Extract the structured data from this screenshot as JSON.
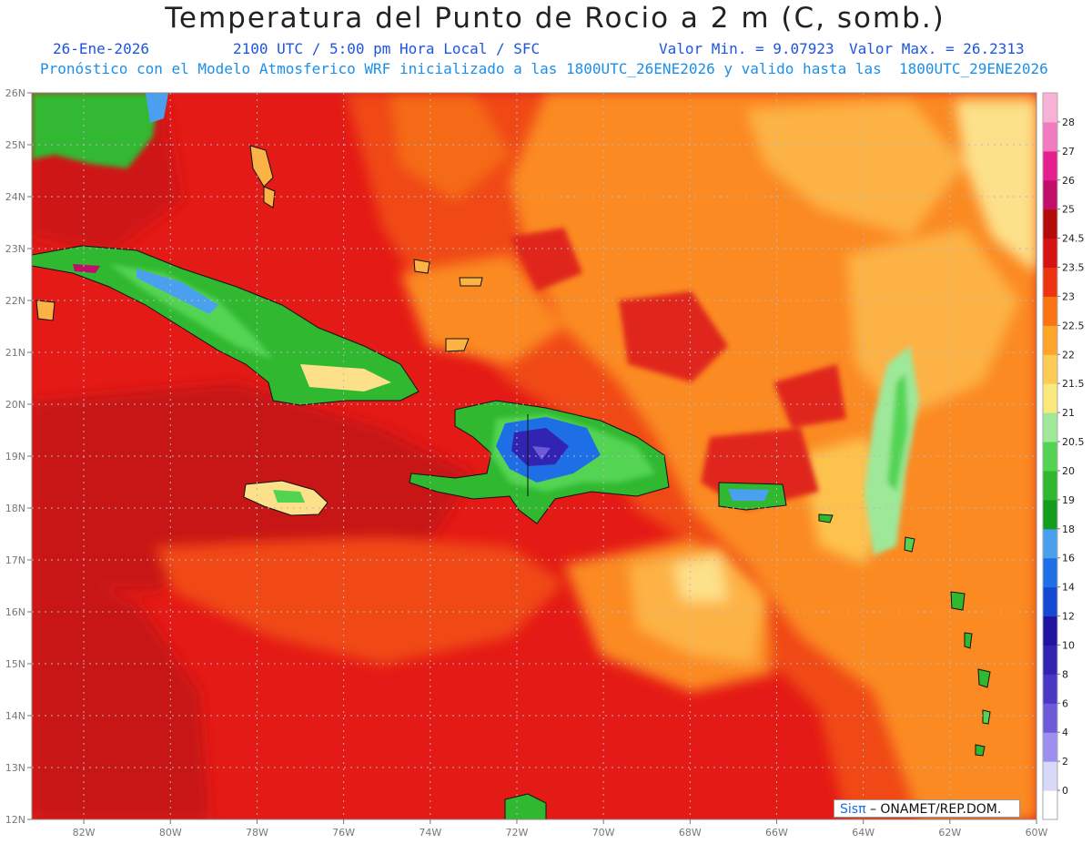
{
  "header": {
    "title": "Temperatura del Punto de Rocio a 2 m (C, somb.)",
    "date": "26-Ene-2026",
    "time": "2100 UTC / 5:00 pm Hora Local / SFC",
    "valor_min": "Valor Min. = 9.07923",
    "valor_max": "Valor Max. = 26.2313",
    "model_line": "Pronóstico con el Modelo Atmosferico WRF inicializado a las 1800UTC_26ENE2026 y valido hasta las  1800UTC_29ENE2026"
  },
  "map": {
    "lat_labels": [
      "26N",
      "25N",
      "24N",
      "23N",
      "22N",
      "21N",
      "20N",
      "19N",
      "18N",
      "17N",
      "16N",
      "15N",
      "14N",
      "13N",
      "12N"
    ],
    "lon_labels": [
      "82W",
      "80W",
      "78W",
      "76W",
      "74W",
      "72W",
      "70W",
      "68W",
      "66W",
      "64W",
      "62W",
      "60W"
    ],
    "lat_range": [
      12,
      26
    ],
    "lon_range": [
      -83.2,
      -60
    ],
    "grid": true,
    "background_color": "#e41a16"
  },
  "legend": {
    "placement": "right",
    "labels": [
      "0",
      "2",
      "4",
      "6",
      "8",
      "10",
      "12",
      "14",
      "16",
      "18",
      "19",
      "20",
      "20.5",
      "21",
      "21.5",
      "22",
      "22.5",
      "23",
      "23.5",
      "24.5",
      "25",
      "26",
      "27",
      "28"
    ],
    "colors": [
      "#ffffff",
      "#d8d8f8",
      "#9d8ef0",
      "#6c5ad8",
      "#4a37c4",
      "#3224b2",
      "#1f14a0",
      "#1549d4",
      "#1e6fe6",
      "#4aa0ef",
      "#129e1c",
      "#30b830",
      "#52d452",
      "#9ee89a",
      "#fbe87c",
      "#fdca54",
      "#fda429",
      "#fb7414",
      "#ed3410",
      "#d61313",
      "#b50a0a",
      "#c10e6a",
      "#e61f8f",
      "#f27bc0",
      "#f7b2d6"
    ]
  },
  "credit": {
    "logo": "Sisπ",
    "text": " – ONAMET/REP.DOM."
  }
}
